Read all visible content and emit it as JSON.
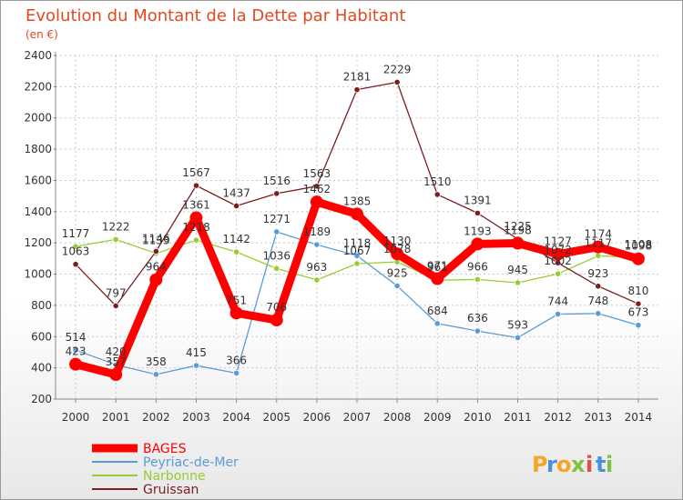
{
  "chart_data": {
    "type": "line",
    "title": "Evolution du Montant de la Dette par Habitant",
    "unit_label": "(en €)",
    "x": [
      "2000",
      "2001",
      "2002",
      "2003",
      "2004",
      "2005",
      "2006",
      "2007",
      "2008",
      "2009",
      "2010",
      "2011",
      "2012",
      "2013",
      "2014"
    ],
    "ylim": [
      200,
      2400
    ],
    "yticks": [
      "200",
      "400",
      "600",
      "800",
      "1000",
      "1200",
      "1400",
      "1600",
      "1800",
      "2000",
      "2200",
      "2400"
    ],
    "grid": true,
    "legend_position": "bottom-left",
    "series": [
      {
        "name": "BAGES",
        "color": "#ff0000",
        "values": [
          423,
          357,
          964,
          1361,
          751,
          706,
          1462,
          1385,
          1130,
          971,
          1193,
          1198,
          1127,
          1174,
          1098
        ]
      },
      {
        "name": "Peyriac-de-Mer",
        "color": "#5b9bd5",
        "values": [
          514,
          420,
          358,
          415,
          366,
          1271,
          1189,
          1118,
          925,
          684,
          636,
          593,
          744,
          748,
          673
        ]
      },
      {
        "name": "Narbonne",
        "color": "#99cc33",
        "values": [
          1177,
          1222,
          1133,
          1218,
          1142,
          1036,
          963,
          1067,
          1078,
          961,
          966,
          945,
          1002,
          1117,
          1108
        ]
      },
      {
        "name": "Gruissan",
        "color": "#7a1f1f",
        "values": [
          1063,
          797,
          1146,
          1567,
          1437,
          1516,
          1563,
          2181,
          2229,
          1510,
          1391,
          1225,
          1072,
          923,
          810
        ]
      }
    ]
  },
  "brand": {
    "letters": [
      "P",
      "r",
      "o",
      "x",
      "i",
      "t",
      "i"
    ],
    "colors": [
      "#f5a623",
      "#4a90d9",
      "#f5a623",
      "#7cc242",
      "#e94e3c",
      "#4a90d9",
      "#7cc242"
    ]
  }
}
